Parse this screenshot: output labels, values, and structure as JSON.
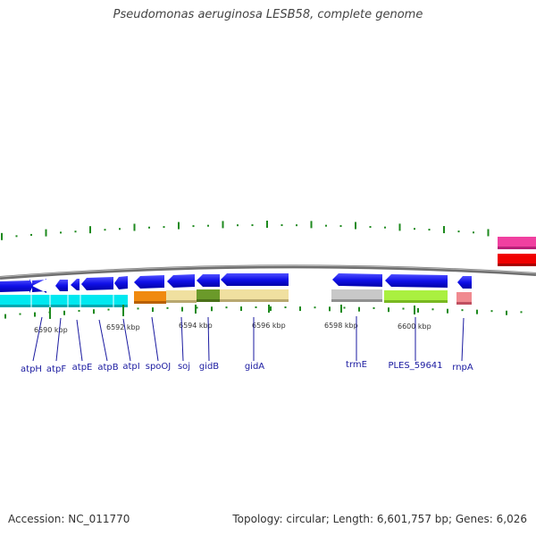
{
  "title": "Pseudomonas aeruginosa LESB58, complete genome",
  "footer": {
    "accession": "Accession: NC_011770",
    "summary": "Topology: circular; Length: 6,601,757 bp; Genes: 6,026"
  },
  "colors": {
    "backbone": "#8a8a8a",
    "gc_skew_ticks": "#1e8a1e",
    "forward_arrow": "#1010e8",
    "label": "#1a1aa0"
  },
  "position_markers": [
    "6590 kbp",
    "6592 kbp",
    "6594 kbp",
    "6596 kbp",
    "6598 kbp",
    "6600 kbp"
  ],
  "genes": [
    "atpH",
    "atpF",
    "atpE",
    "atpB",
    "atpI",
    "spoOJ",
    "soj",
    "gidB",
    "gidA",
    "trmE",
    "PLES_59641",
    "rnpA"
  ],
  "feature_colors": {
    "atp_operon": "#00e8f0",
    "spoOJ": "#f08a10",
    "soj_gidA": "#f0e0a0",
    "gidB": "#6b9a2a",
    "trmE": "#c8c8c8",
    "PLES_59641": "#aaf040",
    "rnpA": "#f08a90",
    "edge_pink": "#f040a0",
    "edge_red": "#f00000"
  }
}
